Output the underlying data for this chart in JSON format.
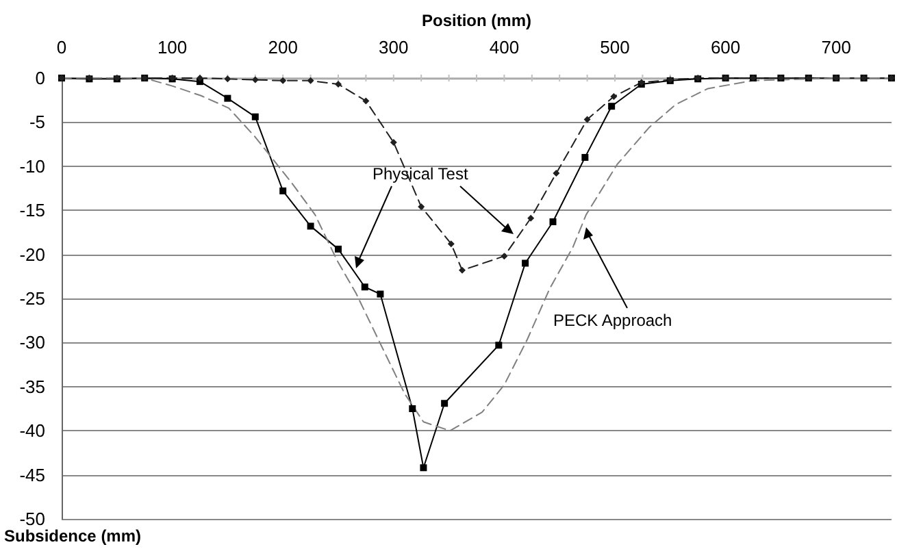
{
  "chart_data": {
    "type": "line",
    "xlabel": "Position (mm)",
    "ylabel": "Subsidence (mm)",
    "xlim": [
      0,
      750
    ],
    "xticks": [
      0,
      100,
      200,
      300,
      400,
      500,
      600,
      700
    ],
    "ylim": [
      -50,
      0
    ],
    "yticks": [
      -50,
      -45,
      -40,
      -35,
      -30,
      -25,
      -20,
      -15,
      -10,
      -5,
      0
    ],
    "grid": "y",
    "annotations": [
      "Physical Test",
      "PECK Approach"
    ],
    "series": [
      {
        "color": "#c0c0c0",
        "marker": "cross",
        "line_style": "solid",
        "x": [
          0,
          25,
          50,
          75,
          100,
          125,
          150,
          175,
          200,
          225,
          250,
          275,
          300,
          325,
          350,
          375,
          400,
          425,
          450,
          475,
          500,
          525,
          550
        ],
        "values": [
          0,
          0,
          0,
          0,
          0,
          0,
          0,
          0,
          0,
          0,
          0,
          0,
          0,
          0,
          0,
          0,
          0,
          0,
          0,
          0,
          0,
          0,
          0
        ]
      },
      {
        "color": "#000000",
        "marker": "square",
        "line_style": "solid",
        "x": [
          0,
          25,
          50,
          75,
          100,
          125,
          150,
          175,
          200,
          225,
          250,
          274,
          288,
          317,
          327,
          346,
          395,
          419,
          444,
          473,
          497,
          524,
          550,
          575,
          600,
          625,
          650,
          675,
          700,
          725,
          750
        ],
        "values": [
          0,
          -0.1,
          -0.1,
          0,
          -0.1,
          -0.4,
          -2.3,
          -4.4,
          -12.8,
          -16.8,
          -19.4,
          -23.7,
          -24.5,
          -37.5,
          -44.2,
          -36.9,
          -30.3,
          -21,
          -16.3,
          -9,
          -3.2,
          -0.7,
          -0.3,
          -0.1,
          0,
          0,
          0,
          0,
          0,
          0,
          0
        ]
      },
      {
        "color": "#202020",
        "marker": "diamond",
        "line_style": "dashed",
        "x": [
          0,
          25,
          50,
          75,
          100,
          125,
          150,
          175,
          200,
          225,
          250,
          275,
          300,
          325,
          352,
          362,
          400,
          424,
          447,
          475,
          499,
          524,
          550,
          575,
          600,
          625,
          650,
          675,
          700,
          725,
          750
        ],
        "values": [
          0,
          0,
          0,
          0,
          0,
          0,
          -0.1,
          -0.2,
          -0.3,
          -0.3,
          -0.7,
          -2.6,
          -7.3,
          -14.6,
          -18.8,
          -21.8,
          -20.2,
          -15.9,
          -10.8,
          -4.7,
          -2.1,
          -0.5,
          -0.2,
          0,
          0,
          0,
          0,
          0,
          0,
          0,
          0
        ]
      },
      {
        "color": "#808080",
        "marker": "none",
        "line_style": "dashed",
        "x": [
          0,
          50,
          75,
          100,
          126,
          151,
          175,
          208,
          229,
          249,
          266,
          286,
          310,
          327,
          351,
          380,
          400,
          421,
          441,
          462,
          474,
          502,
          531,
          555,
          584,
          624,
          700,
          750
        ],
        "values": [
          0,
          0,
          0,
          -0.9,
          -2,
          -3.4,
          -6.7,
          -11.9,
          -15.5,
          -20.7,
          -24.4,
          -29.6,
          -35.8,
          -39,
          -40,
          -37.9,
          -34.8,
          -29.6,
          -23.9,
          -19.2,
          -15.5,
          -9.8,
          -5.6,
          -3,
          -1.2,
          -0.3,
          0,
          0
        ]
      }
    ]
  }
}
